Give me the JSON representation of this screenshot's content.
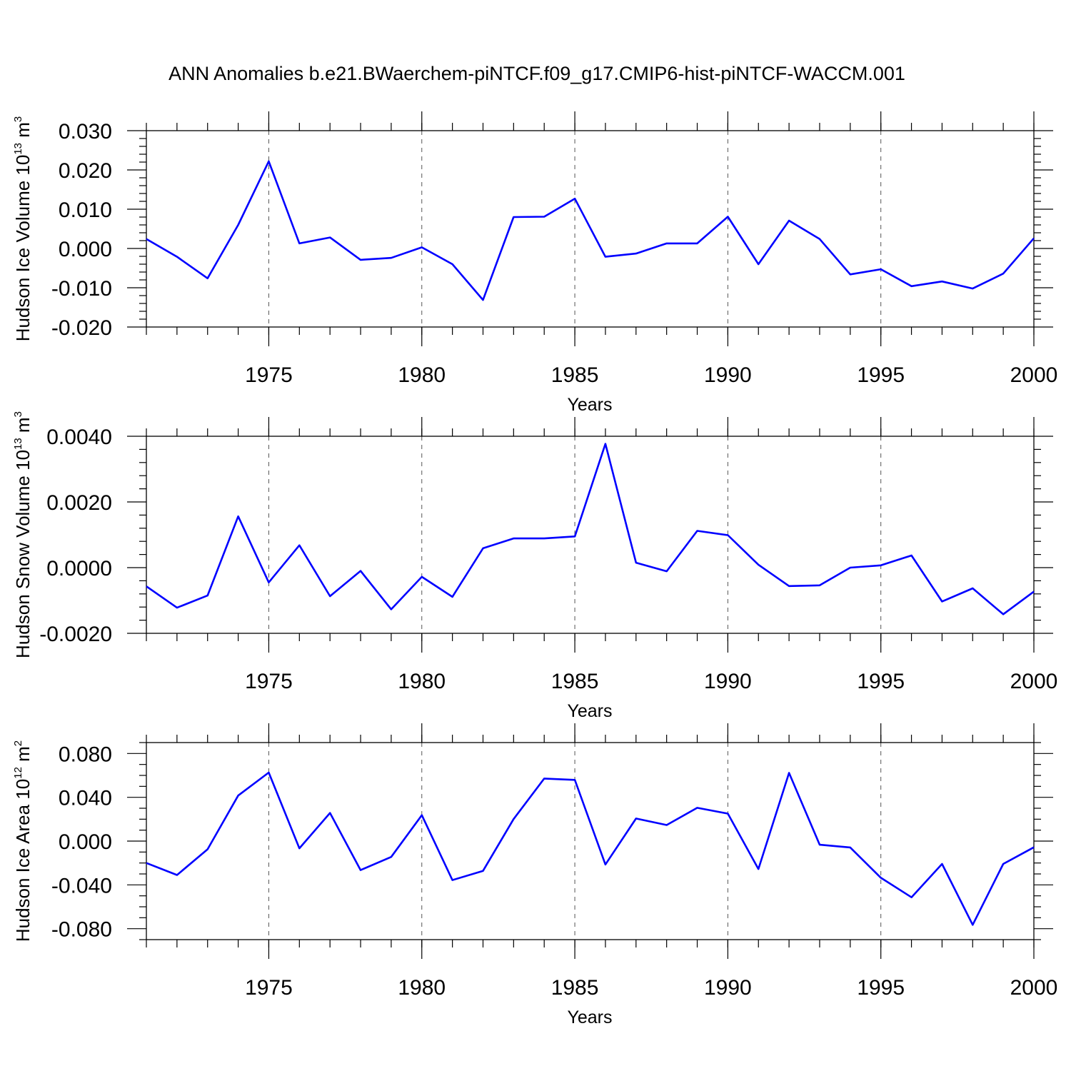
{
  "title": "ANN Anomalies b.e21.BWaerchem-piNTCF.f09_g17.CMIP6-hist-piNTCF-WACCM.001",
  "line_color": "#0000ff",
  "chart_data": [
    {
      "type": "line",
      "ylabel": "Hudson Ice Volume 10",
      "ylabel_exp": "13",
      "ylabel_unit": " m",
      "ylabel_unit_exp": "3",
      "xlabel": "Years",
      "xlim": [
        1971,
        2000
      ],
      "ylim": [
        -0.02,
        0.03
      ],
      "yticks": [
        -0.02,
        -0.01,
        0.0,
        0.01,
        0.02,
        0.03
      ],
      "ytick_labels": [
        "-0.020",
        "-0.010",
        "0.000",
        "0.010",
        "0.020",
        "0.030"
      ],
      "yminor_step": 0.002,
      "xticks": [
        1975,
        1980,
        1985,
        1990,
        1995,
        2000
      ],
      "xtick_labels": [
        "1975",
        "1980",
        "1985",
        "1990",
        "1995",
        "2000"
      ],
      "x": [
        1971,
        1972,
        1973,
        1974,
        1975,
        1976,
        1977,
        1978,
        1979,
        1980,
        1981,
        1982,
        1983,
        1984,
        1985,
        1986,
        1987,
        1988,
        1989,
        1990,
        1991,
        1992,
        1993,
        1994,
        1995,
        1996,
        1997,
        1998,
        1999,
        2000
      ],
      "values": [
        0.0024,
        -0.0021,
        -0.0076,
        0.006,
        0.0222,
        0.0013,
        0.0028,
        -0.0029,
        -0.0024,
        0.0003,
        -0.004,
        -0.0131,
        0.008,
        0.0081,
        0.0127,
        -0.0021,
        -0.0013,
        0.0013,
        0.0013,
        0.0081,
        -0.004,
        0.0071,
        0.0024,
        -0.0066,
        -0.0053,
        -0.0096,
        -0.0084,
        -0.0102,
        -0.0064,
        0.0026
      ]
    },
    {
      "type": "line",
      "ylabel": "Hudson Snow Volume 10",
      "ylabel_exp": "13",
      "ylabel_unit": " m",
      "ylabel_unit_exp": "3",
      "xlabel": "Years",
      "xlim": [
        1971,
        2000
      ],
      "ylim": [
        -0.002,
        0.004
      ],
      "yticks": [
        -0.002,
        0.0,
        0.002,
        0.004
      ],
      "ytick_labels": [
        "-0.0020",
        "0.0000",
        "0.0020",
        "0.0040"
      ],
      "yminor_step": 0.0004,
      "xticks": [
        1975,
        1980,
        1985,
        1990,
        1995,
        2000
      ],
      "xtick_labels": [
        "1975",
        "1980",
        "1985",
        "1990",
        "1995",
        "2000"
      ],
      "x": [
        1971,
        1972,
        1973,
        1974,
        1975,
        1976,
        1977,
        1978,
        1979,
        1980,
        1981,
        1982,
        1983,
        1984,
        1985,
        1986,
        1987,
        1988,
        1989,
        1990,
        1991,
        1992,
        1993,
        1994,
        1995,
        1996,
        1997,
        1998,
        1999,
        2000
      ],
      "values": [
        -0.00057,
        -0.00122,
        -0.00085,
        0.00156,
        -0.00045,
        0.00068,
        -0.00087,
        -0.0001,
        -0.00127,
        -0.00028,
        -0.00089,
        0.00059,
        0.00089,
        0.00089,
        0.00095,
        0.00377,
        0.00015,
        -0.00011,
        0.00112,
        0.00099,
        9e-05,
        -0.00056,
        -0.00054,
        0.0,
        7e-05,
        0.00037,
        -0.00103,
        -0.00063,
        -0.00142,
        -0.00073
      ]
    },
    {
      "type": "line",
      "ylabel": "Hudson Ice Area 10",
      "ylabel_exp": "12",
      "ylabel_unit": " m",
      "ylabel_unit_exp": "2",
      "xlabel": "Years",
      "xlim": [
        1971,
        2000
      ],
      "ylim": [
        -0.09,
        0.09
      ],
      "yticks": [
        -0.08,
        -0.04,
        0.0,
        0.04,
        0.08
      ],
      "ytick_labels": [
        "-0.080",
        "-0.040",
        "0.000",
        "0.040",
        "0.080"
      ],
      "yminor_step": 0.01,
      "xticks": [
        1975,
        1980,
        1985,
        1990,
        1995,
        2000
      ],
      "xtick_labels": [
        "1975",
        "1980",
        "1985",
        "1990",
        "1995",
        "2000"
      ],
      "x": [
        1971,
        1972,
        1973,
        1974,
        1975,
        1976,
        1977,
        1978,
        1979,
        1980,
        1981,
        1982,
        1983,
        1984,
        1985,
        1986,
        1987,
        1988,
        1989,
        1990,
        1991,
        1992,
        1993,
        1994,
        1995,
        1996,
        1997,
        1998,
        1999,
        2000
      ],
      "values": [
        -0.02,
        -0.031,
        -0.0075,
        0.0416,
        0.0626,
        -0.0066,
        0.0257,
        -0.0265,
        -0.0145,
        0.0237,
        -0.0356,
        -0.0272,
        0.0201,
        0.0571,
        0.0559,
        -0.0214,
        0.0206,
        0.0147,
        0.0304,
        0.0251,
        -0.0255,
        0.0623,
        -0.0033,
        -0.0058,
        -0.0335,
        -0.0513,
        -0.0209,
        -0.0765,
        -0.0209,
        -0.0057
      ]
    }
  ]
}
